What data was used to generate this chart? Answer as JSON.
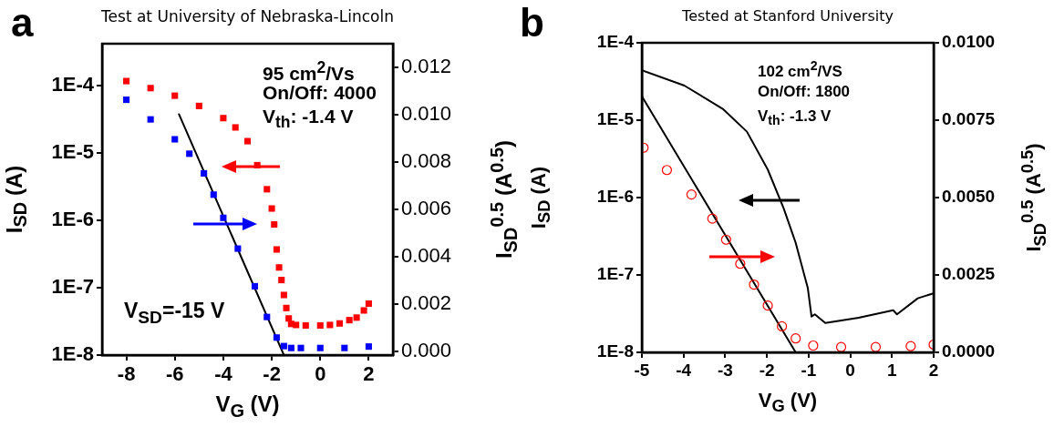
{
  "chart_data": [
    {
      "type": "scatter",
      "title": "Test at University of Nebraska-Lincoln",
      "xlabel": "V$_{G}$ (V)",
      "ylabel": "I$_{SD}$ (A)",
      "y2label": "I$_{SD}$$^{0.5}$ (A$^{0.5}$)",
      "annotations": [
        "a",
        "95 cm$^{2}$/Vs",
        "On/Off: 4000",
        "V$_{th}$: -1.4 V",
        "V$_{SD}$=-15 V"
      ],
      "xlim": [
        -9,
        3
      ],
      "xticks": [
        -8,
        -6,
        -4,
        -2,
        0,
        2
      ],
      "ylim": [
        1e-08,
        0.00042
      ],
      "yticks": [
        {
          "value": 1e-08,
          "label": "1E-8"
        },
        {
          "value": 1e-07,
          "label": "1E-7"
        },
        {
          "value": 1e-06,
          "label": "1E-6"
        },
        {
          "value": 1e-05,
          "label": "1E-5"
        },
        {
          "value": 0.0001,
          "label": "1E-4"
        }
      ],
      "y2lim": [
        -0.00016,
        0.013
      ],
      "y2ticks": [
        {
          "value": 0,
          "label": "0.000"
        },
        {
          "value": 0.002,
          "label": "0.002"
        },
        {
          "value": 0.004,
          "label": "0.004"
        },
        {
          "value": 0.006,
          "label": "0.006"
        },
        {
          "value": 0.008,
          "label": "0.008"
        },
        {
          "value": 0.01,
          "label": "0.010"
        },
        {
          "value": 0.012,
          "label": "0.012"
        }
      ],
      "log": "y",
      "grid": false,
      "legend": false,
      "marker": "square",
      "series": [
        {
          "color": "#ff0000",
          "x": [
            -8,
            -7,
            -6,
            -5,
            -4,
            -3.5,
            -3,
            -2.6,
            -2.2,
            -2,
            -1.9,
            -1.8,
            -1.7,
            -1.6,
            -1.5,
            -1.4,
            -1.3,
            -1.2,
            -1,
            -0.6,
            0,
            0.4,
            0.8,
            1.2,
            1.5,
            1.8,
            2
          ],
          "values": [
            0.000117,
            9.2e-05,
            7.1e-05,
            5e-05,
            3.3e-05,
            2.4e-05,
            1.5e-05,
            6.6e-06,
            2.9e-06,
            1.5e-06,
            8.7e-07,
            3.7e-07,
            2e-07,
            1.3e-07,
            7.8e-08,
            5e-08,
            3.5e-08,
            2.9e-08,
            2.8e-08,
            2.75e-08,
            2.75e-08,
            2.8e-08,
            2.95e-08,
            3.3e-08,
            3.6e-08,
            4.6e-08,
            5.8e-08
          ]
        },
        {
          "color": "#0000ff",
          "axis": "y2",
          "x": [
            -8,
            -7,
            -6,
            -5.4,
            -4.8,
            -4.4,
            -4,
            -3.4,
            -2.7,
            -2.2,
            -1.8,
            -1.5,
            -1.2,
            -0.8,
            0,
            1,
            2
          ],
          "values": [
            0.01063,
            0.0098,
            0.00896,
            0.00835,
            0.00752,
            0.00662,
            0.00564,
            0.00434,
            0.00275,
            0.00145,
            0.00058,
            0.00022,
            0.00014,
            0.00014,
            0.00014,
            0.00014,
            0.0002
          ]
        },
        {
          "type": "line",
          "marker": "none",
          "color": "#000000",
          "axis": "y2",
          "x": [
            -5.83,
            -1.5
          ],
          "values": [
            0.01002,
            -0.00016
          ]
        }
      ]
    },
    {
      "type": "line",
      "title": "Tested at Stanford University",
      "xlabel": "V$_{G}$ (V)",
      "ylabel": "I$_{SD}$ (A)",
      "y2label": "I$_{SD}$$^{0.5}$ (A$^{0.5}$)",
      "annotations": [
        "b",
        "102 cm$^{2}$/VS",
        "On/Off: 1800",
        "V$_{th}$: -1.3 V"
      ],
      "xlim": [
        -5,
        2
      ],
      "xticks": [
        -5,
        -4,
        -3,
        -2,
        -1,
        0,
        1,
        2
      ],
      "ylim": [
        1e-08,
        0.0001
      ],
      "yticks": [
        {
          "value": 1e-08,
          "label": "1E-8"
        },
        {
          "value": 1e-07,
          "label": "1E-7"
        },
        {
          "value": 1e-06,
          "label": "1E-6"
        },
        {
          "value": 1e-05,
          "label": "1E-5"
        },
        {
          "value": 0.0001,
          "label": "1E-4"
        }
      ],
      "y2lim": [
        0,
        0.01
      ],
      "y2ticks": [
        {
          "value": 0,
          "label": "0.0000"
        },
        {
          "value": 0.0025,
          "label": "0.0025"
        },
        {
          "value": 0.005,
          "label": "0.0050"
        },
        {
          "value": 0.0075,
          "label": "0.0075"
        },
        {
          "value": 0.01,
          "label": "0.0100"
        }
      ],
      "log": "y",
      "grid": false,
      "legend": false,
      "marker": "none",
      "series": [
        {
          "color": "#000000",
          "x": [
            -5,
            -3.98,
            -3.06,
            -2.48,
            -1.98,
            -1.6,
            -1.31,
            -1.02,
            -0.93,
            -0.85,
            -0.6,
            0.2,
            1.03,
            1.12,
            1.62,
            2
          ],
          "values": [
            4.4e-05,
            2.8e-05,
            1.4e-05,
            7.1e-06,
            2.3e-06,
            7.3e-07,
            2.6e-07,
            6.8e-08,
            2.9e-08,
            3.1e-08,
            2.4e-08,
            2.8e-08,
            3.5e-08,
            3.1e-08,
            5e-08,
            5.8e-08
          ]
        },
        {
          "type": "scatter",
          "marker": "circle",
          "color": "#ff0000",
          "axis": "y2",
          "x": [
            -4.96,
            -4.4,
            -3.81,
            -3.31,
            -2.98,
            -2.64,
            -2.31,
            -1.98,
            -1.64,
            -1.31,
            -0.89,
            -0.22,
            0.61,
            1.45,
            2
          ],
          "values": [
            0.00661,
            0.00589,
            0.0051,
            0.00432,
            0.00364,
            0.00286,
            0.00219,
            0.00151,
            0.00084,
            0.00045,
            0.00022,
            0.00017,
            0.00017,
            0.0002,
            0.00025
          ]
        },
        {
          "color": "#000000",
          "axis": "y2",
          "x": [
            -5,
            -1.31
          ],
          "values": [
            0.00827,
            0
          ]
        }
      ]
    }
  ]
}
